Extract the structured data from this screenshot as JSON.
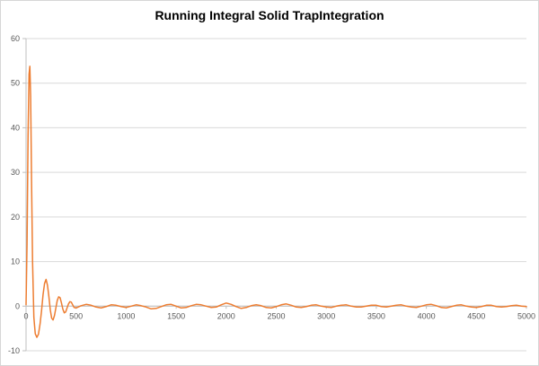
{
  "chart_data": {
    "type": "line",
    "title": "Running Integral Solid TrapIntegration",
    "xlabel": "",
    "ylabel": "",
    "xlim": [
      0,
      5000
    ],
    "ylim": [
      -10,
      60
    ],
    "x_ticks": [
      0,
      500,
      1000,
      1500,
      2000,
      2500,
      3000,
      3500,
      4000,
      4500,
      5000
    ],
    "y_ticks": [
      60,
      50,
      40,
      30,
      20,
      10,
      0,
      -10
    ],
    "grid": "horizontal",
    "legend": "none",
    "colors": {
      "background": "#FFFFFF",
      "gridline": "#D9D9D9",
      "axis": "#BFBFBF",
      "tick_label": "#595959",
      "title": "#000000"
    },
    "series": [
      {
        "name": "Running Integral",
        "color": "#ED7D31",
        "points": [
          [
            0,
            0.3
          ],
          [
            10,
            14
          ],
          [
            20,
            38
          ],
          [
            30,
            52
          ],
          [
            38,
            53.8
          ],
          [
            46,
            47
          ],
          [
            55,
            28
          ],
          [
            65,
            10
          ],
          [
            78,
            -2.5
          ],
          [
            92,
            -6.2
          ],
          [
            108,
            -7
          ],
          [
            124,
            -6.3
          ],
          [
            140,
            -4
          ],
          [
            155,
            -1
          ],
          [
            170,
            2.6
          ],
          [
            185,
            5.1
          ],
          [
            200,
            6
          ],
          [
            214,
            4.7
          ],
          [
            228,
            2.2
          ],
          [
            242,
            -0.8
          ],
          [
            256,
            -2.7
          ],
          [
            270,
            -3.1
          ],
          [
            284,
            -2.1
          ],
          [
            298,
            -0.4
          ],
          [
            312,
            1.3
          ],
          [
            326,
            2.1
          ],
          [
            340,
            1.9
          ],
          [
            354,
            0.7
          ],
          [
            368,
            -0.7
          ],
          [
            382,
            -1.5
          ],
          [
            396,
            -1.3
          ],
          [
            410,
            -0.4
          ],
          [
            424,
            0.5
          ],
          [
            438,
            1.0
          ],
          [
            452,
            0.9
          ],
          [
            466,
            0.3
          ],
          [
            480,
            -0.3
          ],
          [
            500,
            -0.4
          ],
          [
            550,
            0.1
          ],
          [
            600,
            0.4
          ],
          [
            650,
            0.2
          ],
          [
            700,
            -0.2
          ],
          [
            750,
            -0.4
          ],
          [
            800,
            -0.1
          ],
          [
            850,
            0.3
          ],
          [
            900,
            0.2
          ],
          [
            950,
            -0.1
          ],
          [
            1000,
            -0.3
          ],
          [
            1050,
            0.0
          ],
          [
            1100,
            0.3
          ],
          [
            1150,
            0.1
          ],
          [
            1200,
            -0.2
          ],
          [
            1250,
            -0.6
          ],
          [
            1300,
            -0.5
          ],
          [
            1350,
            -0.1
          ],
          [
            1400,
            0.3
          ],
          [
            1450,
            0.4
          ],
          [
            1500,
            0.0
          ],
          [
            1550,
            -0.4
          ],
          [
            1600,
            -0.3
          ],
          [
            1650,
            0.1
          ],
          [
            1700,
            0.4
          ],
          [
            1750,
            0.3
          ],
          [
            1800,
            0.0
          ],
          [
            1850,
            -0.3
          ],
          [
            1900,
            -0.2
          ],
          [
            1950,
            0.3
          ],
          [
            2000,
            0.7
          ],
          [
            2050,
            0.4
          ],
          [
            2100,
            -0.1
          ],
          [
            2150,
            -0.5
          ],
          [
            2200,
            -0.3
          ],
          [
            2250,
            0.1
          ],
          [
            2300,
            0.3
          ],
          [
            2350,
            0.1
          ],
          [
            2400,
            -0.3
          ],
          [
            2450,
            -0.4
          ],
          [
            2500,
            -0.1
          ],
          [
            2550,
            0.3
          ],
          [
            2600,
            0.5
          ],
          [
            2650,
            0.2
          ],
          [
            2700,
            -0.2
          ],
          [
            2750,
            -0.3
          ],
          [
            2800,
            -0.1
          ],
          [
            2850,
            0.2
          ],
          [
            2900,
            0.3
          ],
          [
            2950,
            0.0
          ],
          [
            3000,
            -0.2
          ],
          [
            3050,
            -0.3
          ],
          [
            3100,
            0.0
          ],
          [
            3150,
            0.2
          ],
          [
            3200,
            0.3
          ],
          [
            3250,
            0.0
          ],
          [
            3300,
            -0.2
          ],
          [
            3350,
            -0.2
          ],
          [
            3400,
            0.0
          ],
          [
            3450,
            0.2
          ],
          [
            3500,
            0.2
          ],
          [
            3550,
            -0.1
          ],
          [
            3600,
            -0.2
          ],
          [
            3650,
            0.0
          ],
          [
            3700,
            0.2
          ],
          [
            3750,
            0.3
          ],
          [
            3800,
            0.0
          ],
          [
            3850,
            -0.2
          ],
          [
            3900,
            -0.3
          ],
          [
            3950,
            0.0
          ],
          [
            4000,
            0.3
          ],
          [
            4050,
            0.4
          ],
          [
            4100,
            0.1
          ],
          [
            4150,
            -0.3
          ],
          [
            4200,
            -0.4
          ],
          [
            4250,
            -0.1
          ],
          [
            4300,
            0.2
          ],
          [
            4350,
            0.3
          ],
          [
            4400,
            0.0
          ],
          [
            4450,
            -0.2
          ],
          [
            4500,
            -0.3
          ],
          [
            4550,
            -0.1
          ],
          [
            4600,
            0.2
          ],
          [
            4650,
            0.2
          ],
          [
            4700,
            -0.1
          ],
          [
            4750,
            -0.2
          ],
          [
            4800,
            -0.1
          ],
          [
            4850,
            0.1
          ],
          [
            4900,
            0.2
          ],
          [
            4950,
            0.0
          ],
          [
            5000,
            -0.1
          ]
        ]
      }
    ]
  }
}
